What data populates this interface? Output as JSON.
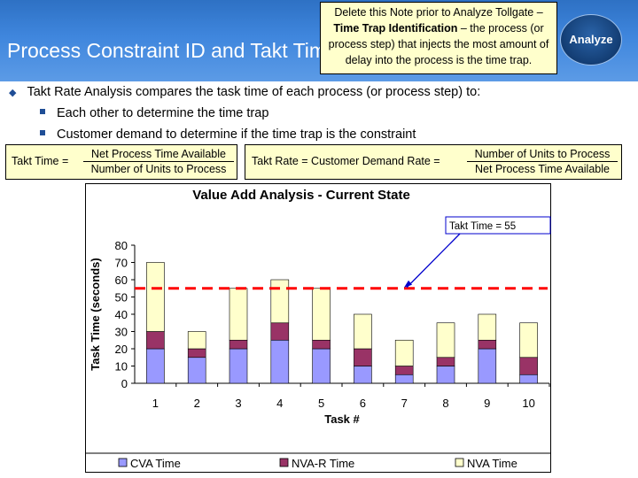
{
  "slide": {
    "title": "Process Constraint ID and Takt Time",
    "badge": "Analyze"
  },
  "note": {
    "text_prefix": "Delete this Note prior to Analyze Tollgate – ",
    "bold": "Time Trap Identification",
    "text_suffix": " – the process (or process step) that injects the most amount of delay into the process is the time trap."
  },
  "bullets": {
    "main": "Takt Rate Analysis compares the task time of each process (or process step) to:",
    "sub1": "Each other to determine the time trap",
    "sub2": "Customer demand to determine if the time trap is the constraint"
  },
  "formulas": {
    "takt_time_label": "Takt Time =",
    "takt_time_num": "Net Process Time Available",
    "takt_time_den": "Number of Units to Process",
    "takt_rate_label": "Takt Rate = Customer Demand Rate =",
    "takt_rate_num": "Number of Units to Process",
    "takt_rate_den": "Net Process Time Available"
  },
  "chart_data": {
    "type": "bar",
    "stacked": true,
    "title": "Value Add Analysis - Current State",
    "xlabel": "Task #",
    "ylabel": "Task Time (seconds)",
    "ylim": [
      0,
      80
    ],
    "yticks": [
      0,
      10,
      20,
      30,
      40,
      50,
      60,
      70,
      80
    ],
    "categories": [
      "1",
      "2",
      "3",
      "4",
      "5",
      "6",
      "7",
      "8",
      "9",
      "10"
    ],
    "series": [
      {
        "name": "CVA Time",
        "color": "#9999ff",
        "values": [
          20,
          15,
          20,
          25,
          20,
          10,
          5,
          10,
          20,
          5
        ]
      },
      {
        "name": "NVA-R Time",
        "color": "#993366",
        "values": [
          10,
          5,
          5,
          10,
          5,
          10,
          5,
          5,
          5,
          10
        ]
      },
      {
        "name": "NVA Time",
        "color": "#ffffcc",
        "values": [
          40,
          10,
          30,
          25,
          30,
          20,
          15,
          20,
          15,
          20
        ]
      }
    ],
    "reference_line": {
      "value": 55,
      "color": "#ff0000",
      "style": "dashed"
    },
    "annotation": "Takt Time = 55",
    "legend_position": "bottom"
  }
}
